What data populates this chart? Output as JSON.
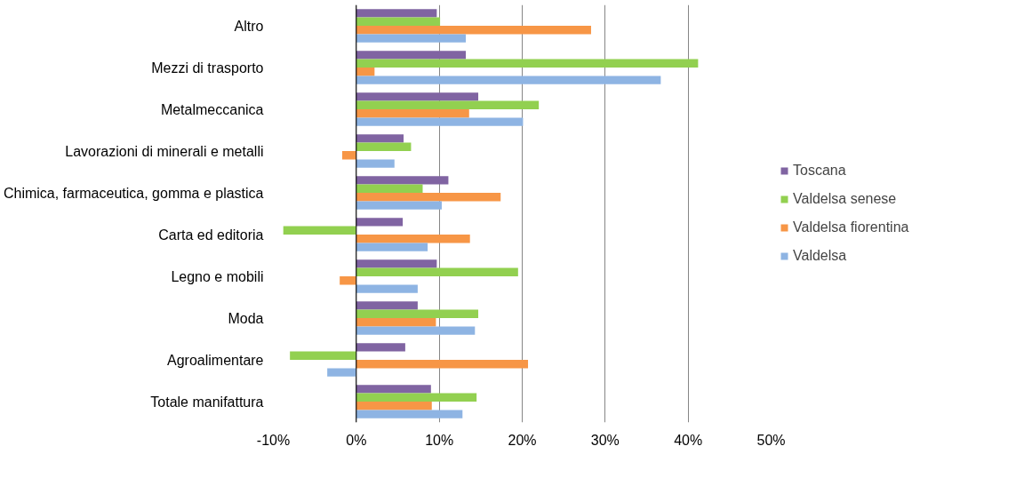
{
  "chart_data": {
    "type": "bar",
    "orientation": "horizontal",
    "categories": [
      "Altro",
      "Mezzi di trasporto",
      "Metalmeccanica",
      "Lavorazioni di minerali e metalli",
      "Chimica, farmaceutica, gomma e plastica",
      "Carta ed editoria",
      "Legno e mobili",
      "Moda",
      "Agroalimentare",
      "Totale manifattura"
    ],
    "series": [
      {
        "name": "Toscana",
        "color": "#8064a2",
        "values": [
          9.7,
          13.2,
          14.7,
          5.7,
          11.1,
          5.6,
          9.7,
          7.4,
          5.9,
          9.0
        ]
      },
      {
        "name": "Valdelsa senese",
        "color": "#92d050",
        "values": [
          10.1,
          41.2,
          22.0,
          6.6,
          8.0,
          -8.8,
          19.5,
          14.7,
          -8.0,
          14.5
        ]
      },
      {
        "name": "Valdelsa fiorentina",
        "color": "#f79646",
        "values": [
          28.3,
          2.2,
          13.6,
          -1.7,
          17.4,
          13.7,
          -2.0,
          9.6,
          20.7,
          9.1
        ]
      },
      {
        "name": "Valdelsa",
        "color": "#8eb4e3",
        "values": [
          13.2,
          36.7,
          20.1,
          4.6,
          10.3,
          8.6,
          7.4,
          14.3,
          -3.5,
          12.8
        ]
      }
    ],
    "xlim": [
      -10,
      50
    ],
    "xticks": [
      {
        "value": -10,
        "label": "-10%"
      },
      {
        "value": 0,
        "label": "0%"
      },
      {
        "value": 10,
        "label": "10%"
      },
      {
        "value": 20,
        "label": "20%"
      },
      {
        "value": 30,
        "label": "30%"
      },
      {
        "value": 40,
        "label": "40%"
      },
      {
        "value": 50,
        "label": "50%"
      }
    ],
    "grid": "x",
    "legend": "right"
  }
}
